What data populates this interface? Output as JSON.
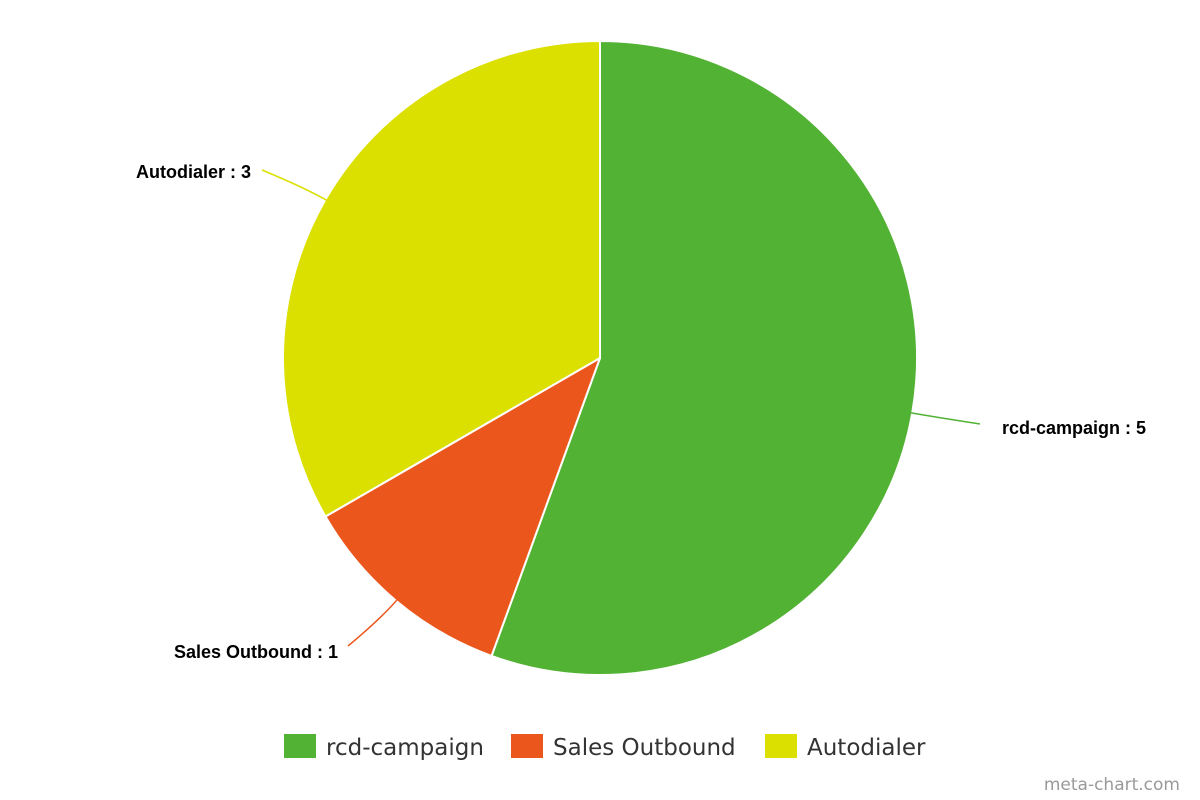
{
  "chart_data": {
    "type": "pie",
    "title": "",
    "categories": [
      "rcd-campaign",
      "Sales Outbound",
      "Autodialer"
    ],
    "values": [
      5,
      1,
      3
    ],
    "colors": [
      "#52b234",
      "#eb561d",
      "#dbe000"
    ],
    "start_angle_deg": 0,
    "direction": "clockwise",
    "data_labels": [
      "rcd-campaign : 5",
      "Sales Outbound : 1",
      "Autodialer : 3"
    ],
    "legend": {
      "placement": "bottom-center",
      "entries": [
        "rcd-campaign",
        "Sales Outbound",
        "Autodialer"
      ]
    }
  },
  "watermark": "meta-chart.com"
}
